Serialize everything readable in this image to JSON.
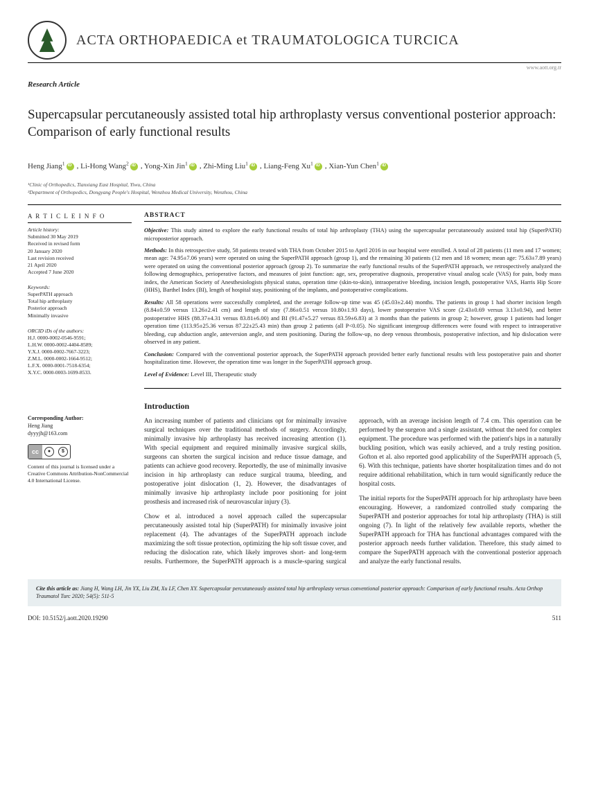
{
  "journal": {
    "name": "ACTA ORTHOPAEDICA et TRAUMATOLOGICA TURCICA",
    "url": "www.aott.org.tr",
    "article_type": "Research Article"
  },
  "title": "Supercapsular percutaneously assisted total hip arthroplasty versus conventional posterior approach: Comparison of early functional results",
  "authors": [
    {
      "name": "Heng Jiang",
      "sup": "1"
    },
    {
      "name": "Li-Hong Wang",
      "sup": "2"
    },
    {
      "name": "Yong-Xin Jin",
      "sup": "1"
    },
    {
      "name": "Zhi-Ming Liu",
      "sup": "1"
    },
    {
      "name": "Liang-Feng Xu",
      "sup": "1"
    },
    {
      "name": "Xian-Yun Chen",
      "sup": "1"
    }
  ],
  "affiliations": [
    "¹Clinic of Orthopedics, Tianxiang East Hospital, Yiwu, China",
    "²Department of Orthopedics, Dongyang People's Hospital, Wenzhou Medical University, Wenzhou, China"
  ],
  "article_info": {
    "heading": "A R T I C L E   I N F O",
    "history_label": "Article history:",
    "history": [
      "Submitted 30 May 2019",
      "Received in revised form",
      "20 January 2020",
      "Last revision received",
      "21 April 2020",
      "Accepted 7 June 2020"
    ],
    "keywords_label": "Keywords:",
    "keywords": [
      "SuperPATH approach",
      "Total hip arthroplasty",
      "Posterior approach",
      "Minimally invasive"
    ],
    "orcid_label": "ORCID iDs of the authors:",
    "orcids": [
      "H.J. 0000-0002-0546-9591;",
      "L.H.W. 0000-0002-4404-8589;",
      "Y.X.J. 0000-0002-7667-3223;",
      "Z.M.L. 0000-0002-1664-9512;",
      "L.F.X. 0000-0001-7518-6354;",
      "X.Y.C. 0000-0003-1699-8533."
    ]
  },
  "abstract": {
    "heading": "ABSTRACT",
    "objective_label": "Objective:",
    "objective": "This study aimed to explore the early functional results of total hip arthroplasty (THA) using the supercapsular percutaneously assisted total hip (SuperPATH) microposterior approach.",
    "methods_label": "Methods:",
    "methods": "In this retrospective study, 58 patients treated with THA from October 2015 to April 2016 in our hospital were enrolled. A total of 28 patients (11 men and 17 women; mean age: 74.95±7.06 years) were operated on using the SuperPATH approach (group 1), and the remaining 30 patients (12 men and 18 women; mean age: 75.63±7.89 years) were operated on using the conventional posterior approach (group 2). To summarize the early functional results of the SuperPATH approach, we retrospectively analyzed the following demographics, perioperative factors, and measures of joint function: age, sex, preoperative diagnosis, preoperative visual analog scale (VAS) for pain, body mass index, the American Society of Anesthesiologists physical status, operation time (skin-to-skin), intraoperative bleeding, incision length, postoperative VAS, Harris Hip Score (HHS), Barthel Index (BI), length of hospital stay, positioning of the implants, and postoperative complications.",
    "results_label": "Results:",
    "results": "All 58 operations were successfully completed, and the average follow-up time was 45 (45.03±2.44) months. The patients in group 1 had shorter incision length (8.84±0.59 versus 13.26±2.41 cm) and length of stay (7.86±0.51 versus 10.80±1.93 days), lower postoperative VAS score (2.43±0.69 versus 3.13±0.94), and better postoperative HHS (88.37±4.31 versus 83.81±6.00) and BI (91.47±5.27 versus 83.59±6.83) at 3 months than the patients in group 2; however, group 1 patients had longer operation time (113.95±25.36 versus 87.22±25.43 min) than group 2 patients (all P<0.05). No significant intergroup differences were found with respect to intraoperative bleeding, cup abduction angle, anteversion angle, and stem positioning. During the follow-up, no deep venous thrombosis, postoperative infection, and hip dislocation were observed in any patient.",
    "conclusion_label": "Conclusion:",
    "conclusion": "Compared with the conventional posterior approach, the SuperPATH approach provided better early functional results with less postoperative pain and shorter hospitalization time. However, the operation time was longer in the SuperPATH approach group.",
    "loe_label": "Level of Evidence:",
    "loe": "Level III, Therapeutic study"
  },
  "intro": {
    "heading": "Introduction",
    "p1": "An increasing number of patients and clinicians opt for minimally invasive surgical techniques over the traditional methods of surgery. Accordingly, minimally invasive hip arthroplasty has received increasing attention (1). With special equipment and required minimally invasive surgical skills, surgeons can shorten the surgical incision and reduce tissue damage, and patients can achieve good recovery. Reportedly, the use of minimally invasive incision in hip arthroplasty can reduce surgical trauma, bleeding, and postoperative joint dislocation (1, 2). However, the disadvantages of minimally invasive hip arthroplasty include poor positioning for joint prosthesis and increased risk of neurovascular injury (3).",
    "p2": "Chow et al. introduced a novel approach called the supercapsular percutaneously assisted total hip (SuperPATH) for minimally invasive joint replacement (4). The advantages of the SuperPATH approach include maximizing the soft tissue protection, optimizing the hip soft tissue cover, and reducing the dislocation rate, which likely improves short- and long-term results. Furthermore, the SuperPATH approach is a muscle-sparing surgical approach, with an average incision length of 7.4 cm. This operation can be performed by the surgeon and a single assistant, without the need for complex equipment. The procedure was performed with the patient's hips in a naturally buckling position, which was easily achieved, and a truly resting position. Gofton et al. also reported good applicability of the SuperPATH approach (5, 6). With this technique, patients have shorter hospitalization times and do not require additional rehabilitation, which in turn would significantly reduce the hospital costs.",
    "p3": "The initial reports for the SuperPATH approach for hip arthroplasty have been encouraging. However, a randomized controlled study comparing the SuperPATH and posterior approaches for total hip arthroplasty (THA) is still ongoing (7). In light of the relatively few available reports, whether the SuperPATH approach for THA has functional advantages compared with the posterior approach needs further validation. Therefore, this study aimed to compare the SuperPATH approach with the conventional posterior approach and analyze the early functional results."
  },
  "corresponding": {
    "label": "Corresponding Author:",
    "name": "Heng Jiang",
    "email": "dyyyjh@163.com"
  },
  "license": "Content of this journal is licensed under a Creative Commons Attribution-NonCommercial 4.0 International License.",
  "cite": {
    "label": "Cite this article as:",
    "text": "Jiang H, Wang LH, Jin YX, Liu ZM, Xu LF, Chen XY. Supercapsular percutaneously assisted total hip arthroplasty versus conventional posterior approach: Comparison of early functional results. Acta Orthop Traumatol Turc 2020; 54(5): 511-5"
  },
  "footer": {
    "doi": "DOI: 10.5152/j.aott.2020.19290",
    "page": "511"
  }
}
